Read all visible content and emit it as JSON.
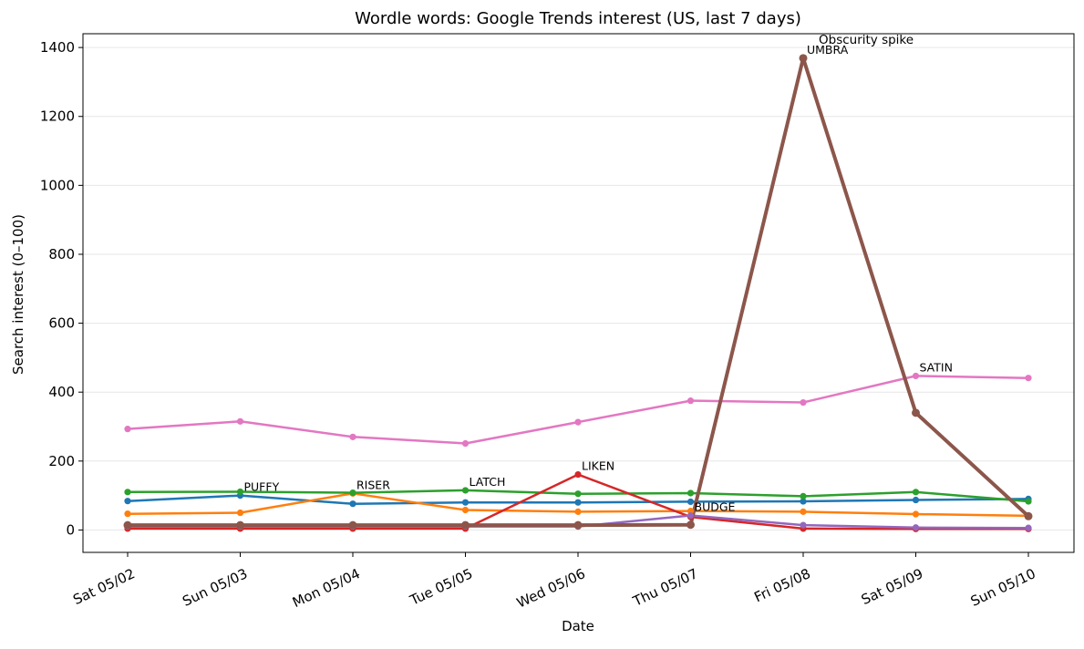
{
  "chart_data": {
    "type": "line",
    "title": "Wordle words: Google Trends interest (US, last 7 days)",
    "xlabel": "Date",
    "ylabel": "Search interest (0–100)",
    "categories": [
      "Sat 05/02",
      "Sun 05/03",
      "Mon 05/04",
      "Tue 05/05",
      "Wed 05/06",
      "Thu 05/07",
      "Fri 05/08",
      "Sat 05/09",
      "Sun 05/10"
    ],
    "ylim": [
      -65,
      1440
    ],
    "yticks": [
      0,
      200,
      400,
      600,
      800,
      1000,
      1200,
      1400
    ],
    "grid": "horizontal",
    "series": [
      {
        "name": "PUFFY",
        "color": "#1f77b4",
        "values": [
          84,
          100,
          76,
          80,
          80,
          82,
          83,
          87,
          90
        ],
        "label_index": 1
      },
      {
        "name": "RISER",
        "color": "#ff7f0e",
        "values": [
          47,
          50,
          106,
          58,
          53,
          55,
          53,
          46,
          41
        ],
        "label_index": 2
      },
      {
        "name": "LATCH",
        "color": "#2ca02c",
        "values": [
          110,
          111,
          108,
          115,
          105,
          107,
          98,
          110,
          83
        ],
        "label_index": 3
      },
      {
        "name": "LIKEN",
        "color": "#d62728",
        "values": [
          4,
          4,
          4,
          4,
          161,
          38,
          4,
          3,
          3
        ],
        "label_index": 4
      },
      {
        "name": "BUDGE",
        "color": "#9467bd",
        "values": [
          10,
          10,
          10,
          10,
          10,
          42,
          14,
          7,
          6
        ],
        "label_index": 5
      },
      {
        "name": "UMBRA",
        "color": "#8c564b",
        "values": [
          14,
          14,
          14,
          14,
          14,
          15,
          1369,
          340,
          40
        ],
        "label_index": 6,
        "emphasis": true
      },
      {
        "name": "SATIN",
        "color": "#e377c2",
        "values": [
          293,
          315,
          270,
          251,
          313,
          375,
          370,
          447,
          441
        ],
        "label_index": 7
      }
    ],
    "annotations": [
      {
        "text": "Obscurity spike",
        "x": "Fri 05/08",
        "y": 1369
      }
    ]
  }
}
